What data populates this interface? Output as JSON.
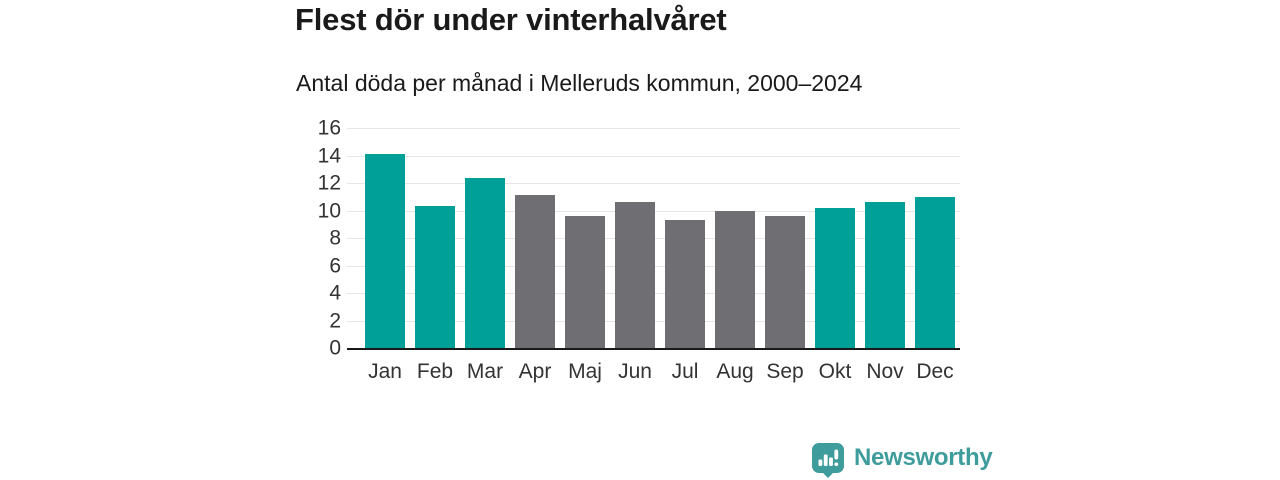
{
  "header": {
    "title": "Flest dör under vinterhalvåret",
    "subtitle": "Antal döda per månad i Melleruds kommun, 2000–2024"
  },
  "chart_data": {
    "type": "bar",
    "title": "Flest dör under vinterhalvåret",
    "subtitle": "Antal döda per månad i Melleruds kommun, 2000–2024",
    "categories": [
      "Jan",
      "Feb",
      "Mar",
      "Apr",
      "Maj",
      "Jun",
      "Jul",
      "Aug",
      "Sep",
      "Okt",
      "Nov",
      "Dec"
    ],
    "values": [
      14.1,
      10.3,
      12.4,
      11.1,
      9.6,
      10.6,
      9.3,
      10.0,
      9.6,
      10.2,
      10.6,
      11.0
    ],
    "xlabel": "",
    "ylabel": "",
    "ylim": [
      0,
      16
    ],
    "yticks": [
      0,
      2,
      4,
      6,
      8,
      10,
      12,
      14,
      16
    ],
    "grid": true,
    "legend": "none",
    "highlight_months": [
      "Jan",
      "Feb",
      "Mar",
      "Okt",
      "Nov",
      "Dec"
    ],
    "colors": {
      "highlight": "#00a099",
      "default": "#6e6e73",
      "gridline": "#e6e6e6",
      "axis": "#1a1a1a",
      "tick_text": "#333333"
    }
  },
  "footer": {
    "brand": "Newsworthy",
    "logo_color": "#3f9c9c",
    "logo_icon": "bar-chart-speech-bubble-icon"
  }
}
